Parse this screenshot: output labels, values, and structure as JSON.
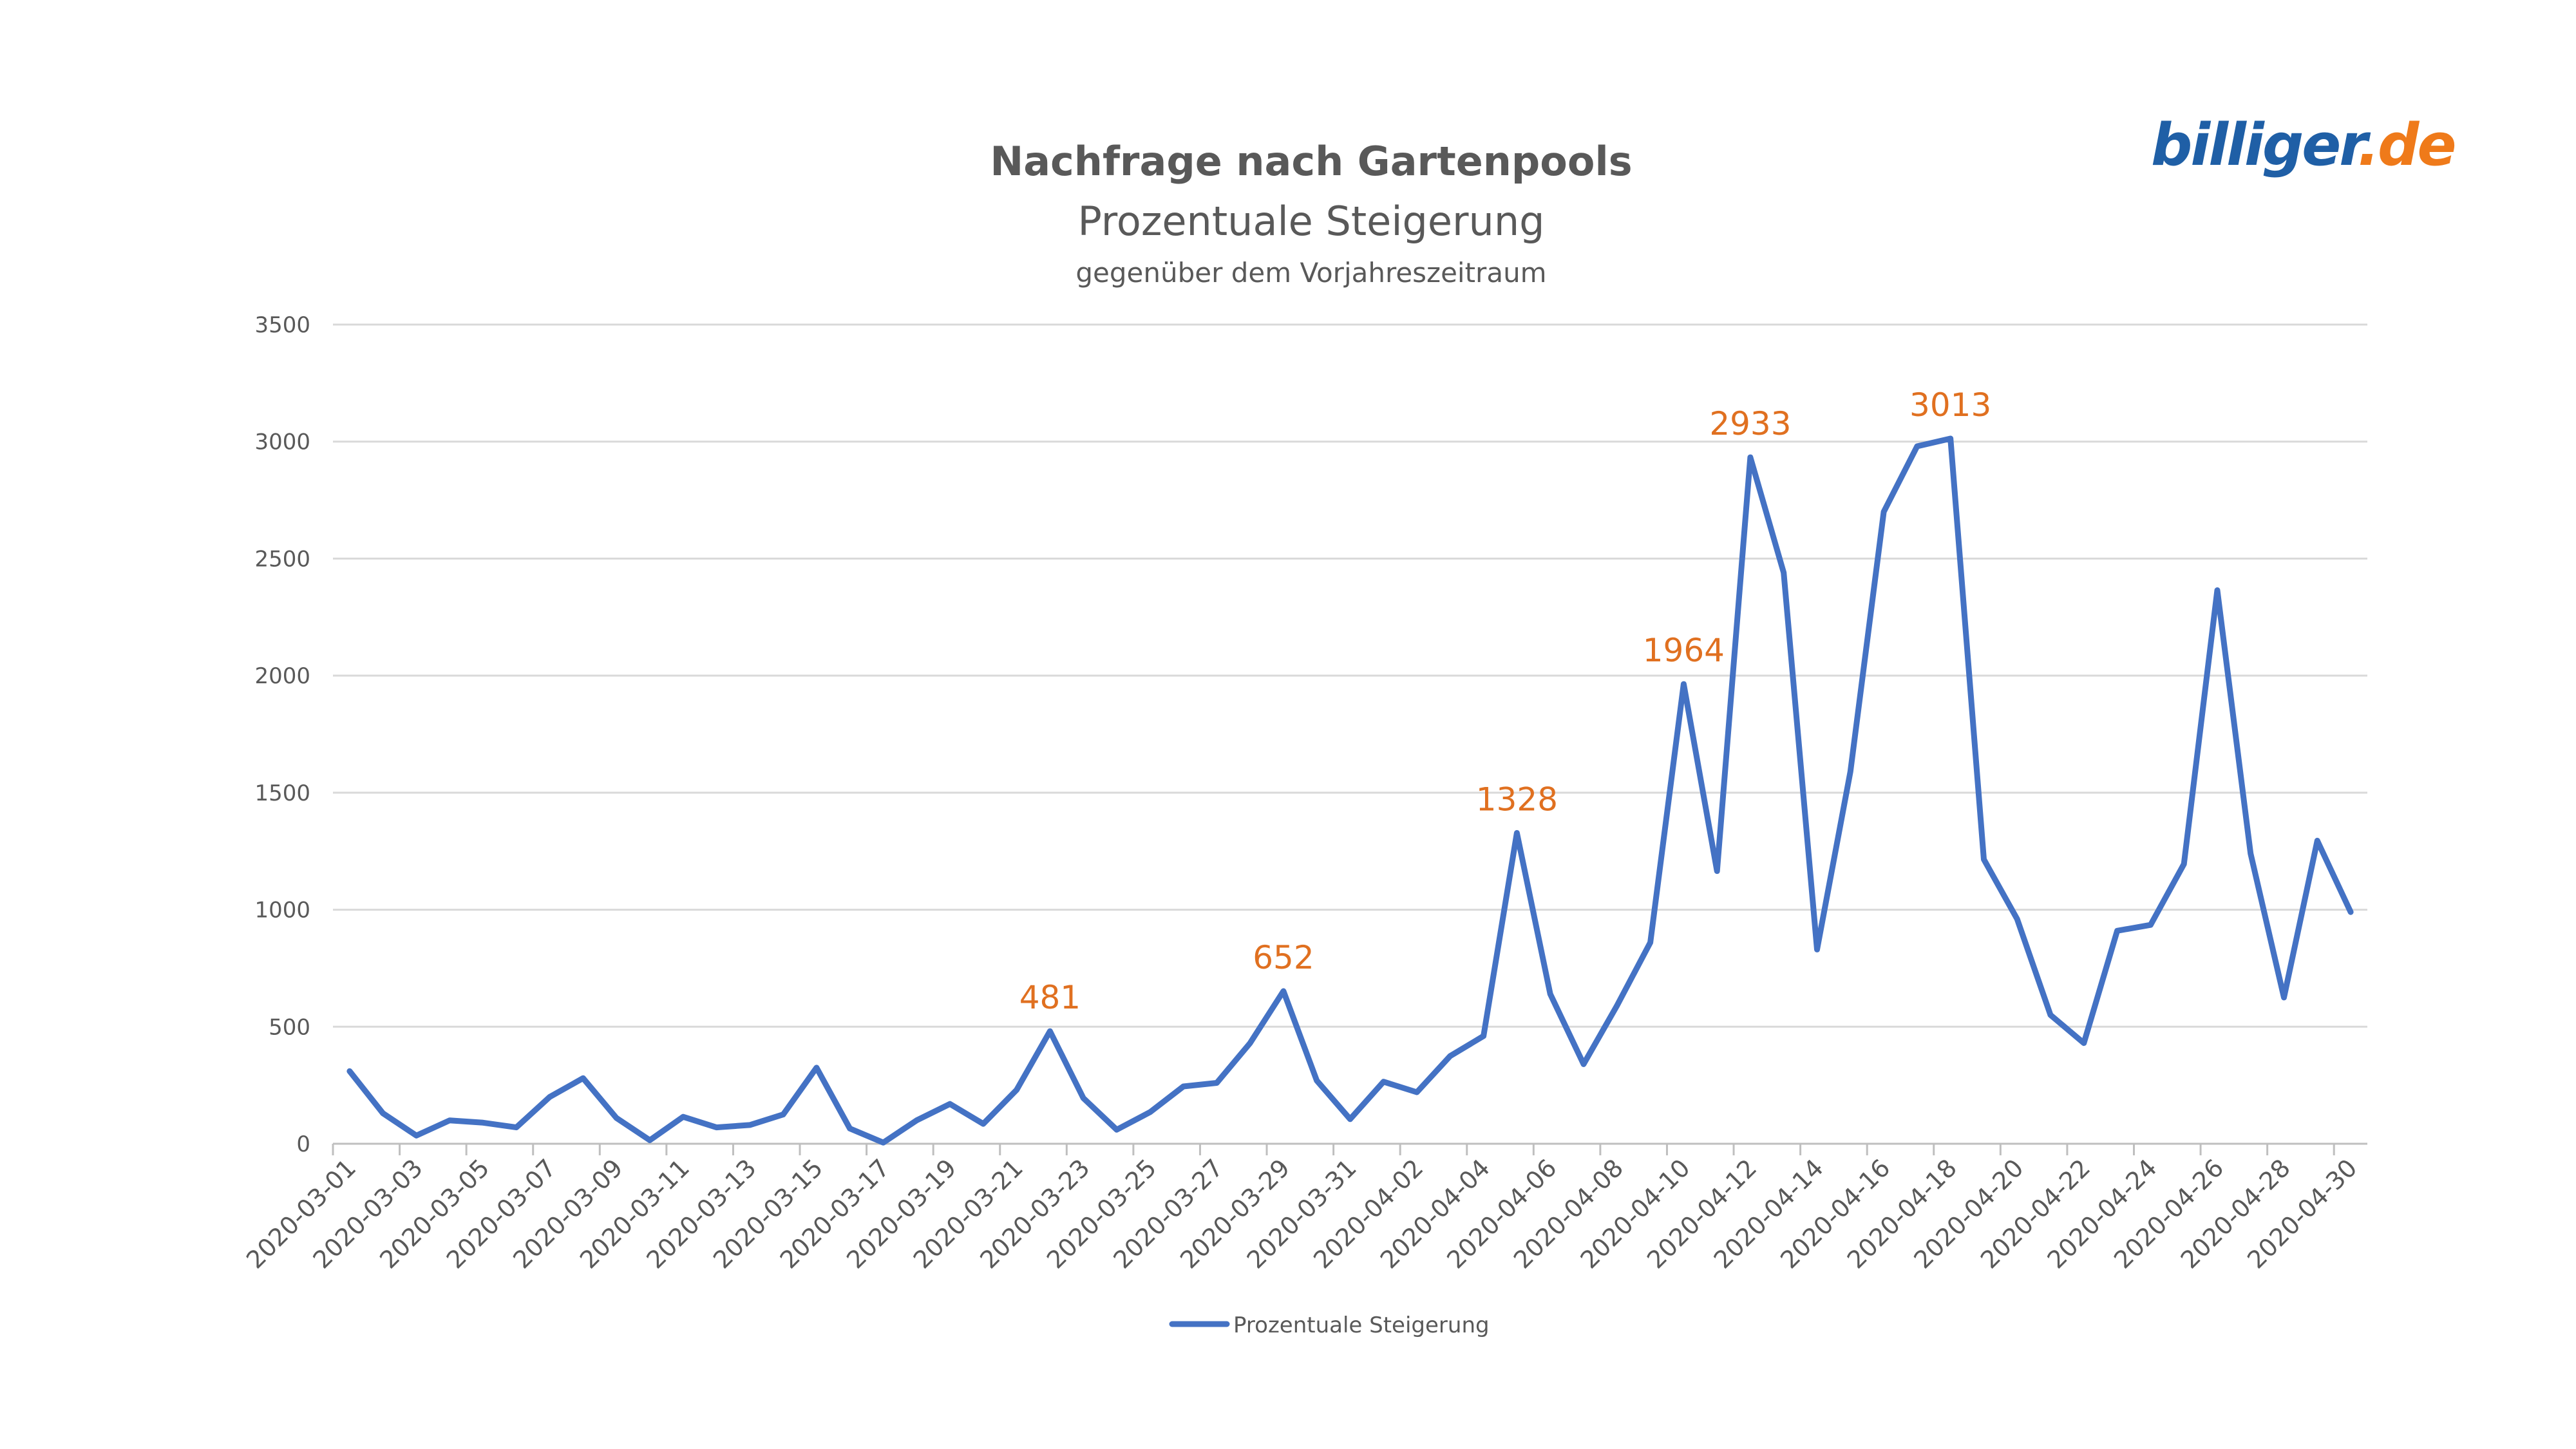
{
  "logo": {
    "part1": "billiger",
    "part2": ".de",
    "color1": "#1f5fa6",
    "color2": "#ef7a1a"
  },
  "chart_data": {
    "type": "line",
    "title": "Nachfrage nach Gartenpools",
    "subtitle": "Prozentuale Steigerung",
    "subsubtitle": "gegenüber dem Vorjahreszeitraum",
    "ylim": [
      0,
      3500
    ],
    "yticks": [
      0,
      500,
      1000,
      1500,
      2000,
      2500,
      3000,
      3500
    ],
    "grid": true,
    "legend_position": "bottom",
    "line_color": "#4472C4",
    "label_color": "#E07020",
    "x": [
      "2020-03-01",
      "2020-03-02",
      "2020-03-03",
      "2020-03-04",
      "2020-03-05",
      "2020-03-06",
      "2020-03-07",
      "2020-03-08",
      "2020-03-09",
      "2020-03-10",
      "2020-03-11",
      "2020-03-12",
      "2020-03-13",
      "2020-03-14",
      "2020-03-15",
      "2020-03-16",
      "2020-03-17",
      "2020-03-18",
      "2020-03-19",
      "2020-03-20",
      "2020-03-21",
      "2020-03-22",
      "2020-03-23",
      "2020-03-24",
      "2020-03-25",
      "2020-03-26",
      "2020-03-27",
      "2020-03-28",
      "2020-03-29",
      "2020-03-30",
      "2020-03-31",
      "2020-04-01",
      "2020-04-02",
      "2020-04-03",
      "2020-04-04",
      "2020-04-05",
      "2020-04-06",
      "2020-04-07",
      "2020-04-08",
      "2020-04-09",
      "2020-04-10",
      "2020-04-11",
      "2020-04-12",
      "2020-04-13",
      "2020-04-14",
      "2020-04-15",
      "2020-04-16",
      "2020-04-17",
      "2020-04-18",
      "2020-04-19",
      "2020-04-20",
      "2020-04-21",
      "2020-04-22",
      "2020-04-23",
      "2020-04-24",
      "2020-04-25",
      "2020-04-26",
      "2020-04-27",
      "2020-04-28",
      "2020-04-29",
      "2020-04-30"
    ],
    "xtick_labels": [
      "2020-03-01",
      "2020-03-03",
      "2020-03-05",
      "2020-03-07",
      "2020-03-09",
      "2020-03-11",
      "2020-03-13",
      "2020-03-15",
      "2020-03-17",
      "2020-03-19",
      "2020-03-21",
      "2020-03-23",
      "2020-03-25",
      "2020-03-27",
      "2020-03-29",
      "2020-03-31",
      "2020-04-02",
      "2020-04-04",
      "2020-04-06",
      "2020-04-08",
      "2020-04-10",
      "2020-04-12",
      "2020-04-14",
      "2020-04-16",
      "2020-04-18",
      "2020-04-20",
      "2020-04-22",
      "2020-04-24",
      "2020-04-26",
      "2020-04-28",
      "2020-04-30"
    ],
    "series": [
      {
        "name": "Prozentuale Steigerung",
        "values": [
          310,
          130,
          35,
          100,
          90,
          70,
          200,
          280,
          110,
          15,
          115,
          70,
          80,
          125,
          325,
          65,
          5,
          100,
          170,
          85,
          230,
          481,
          195,
          60,
          135,
          245,
          260,
          430,
          652,
          270,
          105,
          265,
          220,
          375,
          460,
          1328,
          640,
          340,
          590,
          860,
          1964,
          1165,
          2933,
          2440,
          830,
          1590,
          2700,
          2980,
          3013,
          1215,
          960,
          550,
          430,
          910,
          935,
          1195,
          2365,
          1240,
          625,
          1295,
          990
        ]
      }
    ],
    "data_labels": [
      {
        "x": "2020-03-22",
        "value": "481"
      },
      {
        "x": "2020-03-29",
        "value": "652"
      },
      {
        "x": "2020-04-05",
        "value": "1328"
      },
      {
        "x": "2020-04-10",
        "value": "1964"
      },
      {
        "x": "2020-04-12",
        "value": "2933"
      },
      {
        "x": "2020-04-18",
        "value": "3013"
      }
    ]
  }
}
